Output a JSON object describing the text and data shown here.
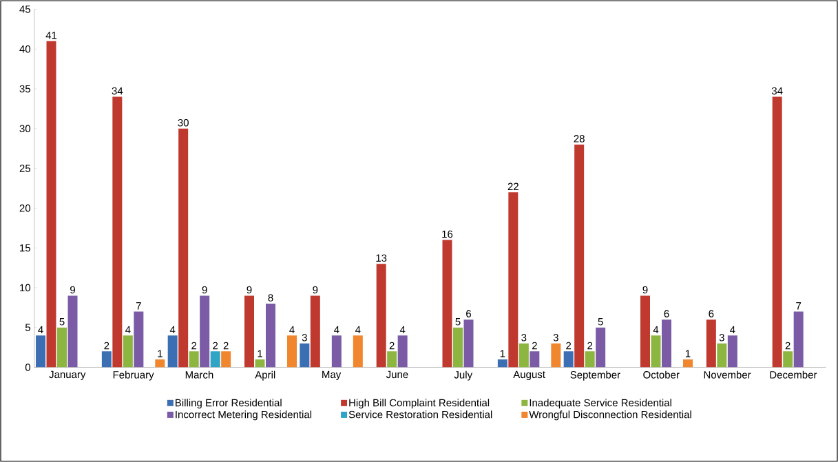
{
  "chart_data": {
    "type": "bar",
    "categories": [
      "January",
      "February",
      "March",
      "April",
      "May",
      "June",
      "July",
      "August",
      "September",
      "October",
      "November",
      "December"
    ],
    "series": [
      {
        "name": "Billing Error Residential",
        "color": "#3c6eb4",
        "values": [
          4,
          2,
          4,
          null,
          3,
          null,
          null,
          1,
          2,
          null,
          null,
          null
        ]
      },
      {
        "name": "High Bill Complaint Residential",
        "color": "#c0392f",
        "values": [
          41,
          34,
          30,
          9,
          9,
          13,
          16,
          22,
          28,
          9,
          6,
          34
        ]
      },
      {
        "name": "Inadequate Service Residential",
        "color": "#8db640",
        "values": [
          5,
          4,
          2,
          1,
          null,
          2,
          5,
          3,
          2,
          4,
          3,
          2
        ]
      },
      {
        "name": "Incorrect Metering Residential",
        "color": "#7b5aa6",
        "values": [
          9,
          7,
          9,
          8,
          4,
          4,
          6,
          2,
          5,
          6,
          4,
          7
        ]
      },
      {
        "name": "Service Restoration Residential",
        "color": "#2fa4c4",
        "values": [
          null,
          null,
          2,
          null,
          null,
          null,
          null,
          null,
          null,
          null,
          null,
          null
        ]
      },
      {
        "name": "Wrongful Disconnection Residential",
        "color": "#f0862e",
        "values": [
          null,
          1,
          2,
          4,
          4,
          null,
          null,
          3,
          null,
          1,
          null,
          null
        ]
      }
    ],
    "ylim": [
      0,
      45
    ],
    "yticks": [
      0,
      5,
      10,
      15,
      20,
      25,
      30,
      35,
      40,
      45
    ],
    "grid": false,
    "legend": "bottom",
    "data_labels": true
  }
}
